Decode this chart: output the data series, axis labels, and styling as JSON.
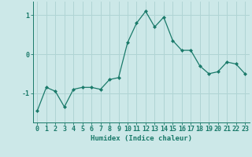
{
  "x": [
    0,
    1,
    2,
    3,
    4,
    5,
    6,
    7,
    8,
    9,
    10,
    11,
    12,
    13,
    14,
    15,
    16,
    17,
    18,
    19,
    20,
    21,
    22,
    23
  ],
  "y": [
    -1.45,
    -0.85,
    -0.95,
    -1.35,
    -0.9,
    -0.85,
    -0.85,
    -0.9,
    -0.65,
    -0.6,
    0.3,
    0.8,
    1.1,
    0.7,
    0.95,
    0.35,
    0.1,
    0.1,
    -0.3,
    -0.5,
    -0.45,
    -0.2,
    -0.25,
    -0.5
  ],
  "line_color": "#1a7a6a",
  "marker": "D",
  "marker_size": 2.0,
  "bg_color": "#cce8e8",
  "grid_color": "#b0d4d4",
  "tick_color": "#1a7a6a",
  "label_color": "#1a7a6a",
  "xlabel": "Humidex (Indice chaleur)",
  "ytick_labels": [
    "1",
    "0",
    "-1"
  ],
  "ytick_vals": [
    1,
    0,
    -1
  ],
  "xlim": [
    -0.5,
    23.5
  ],
  "ylim": [
    -1.75,
    1.35
  ],
  "xlabel_fontsize": 6.5,
  "tick_fontsize": 6.0
}
